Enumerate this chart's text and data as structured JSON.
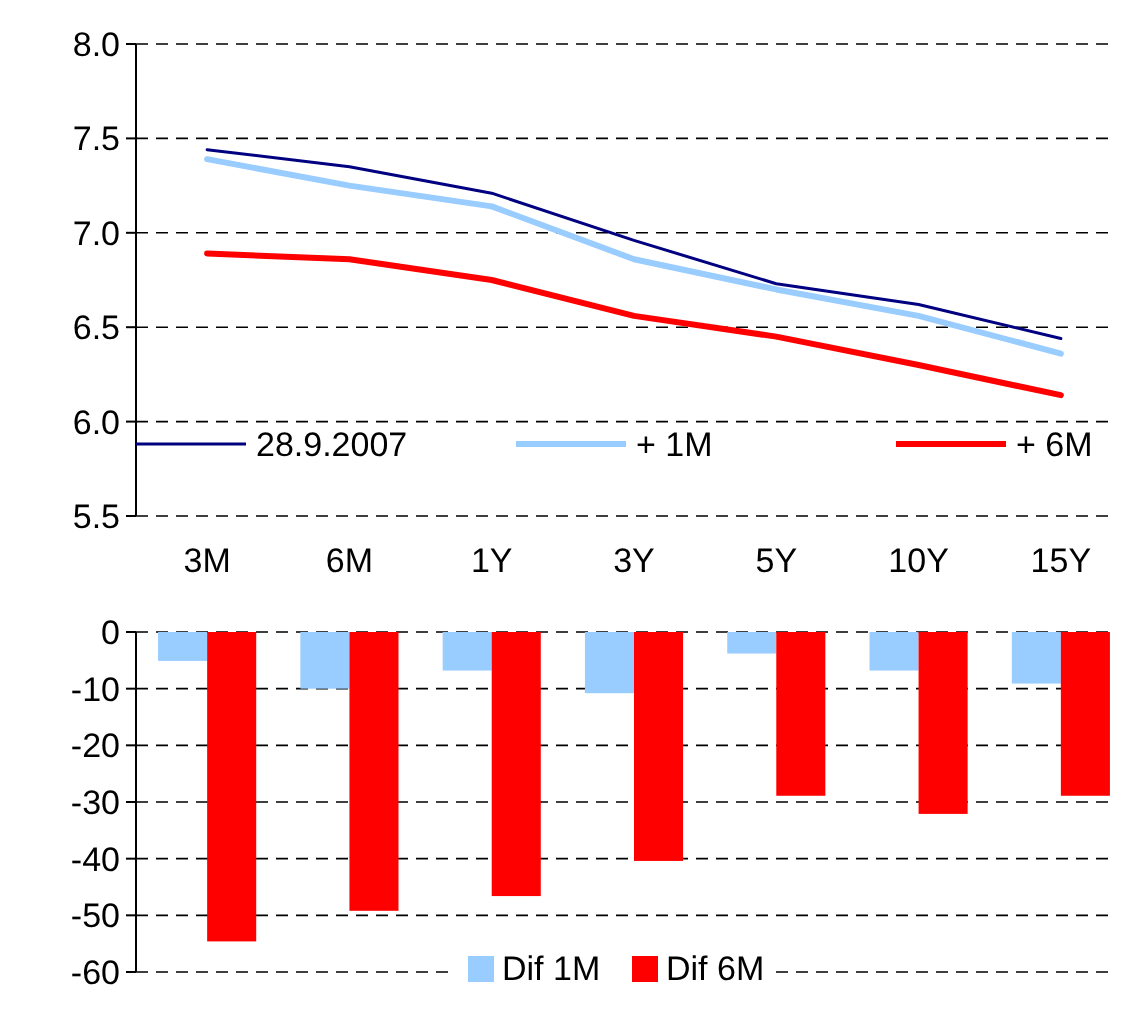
{
  "chart_data": [
    {
      "type": "line",
      "categories": [
        "3M",
        "6M",
        "1Y",
        "3Y",
        "5Y",
        "10Y",
        "15Y"
      ],
      "series": [
        {
          "name": "28.9.2007",
          "color": "#000080",
          "values": [
            7.44,
            7.35,
            7.21,
            6.96,
            6.73,
            6.62,
            6.44
          ]
        },
        {
          "name": "+ 1M",
          "color": "#99ccff",
          "values": [
            7.39,
            7.25,
            7.14,
            6.86,
            6.7,
            6.56,
            6.36
          ]
        },
        {
          "name": "+ 6M",
          "color": "#ff0000",
          "values": [
            6.89,
            6.86,
            6.75,
            6.56,
            6.45,
            6.3,
            6.14
          ]
        }
      ],
      "ylim": [
        5.5,
        8
      ],
      "yticks": [
        {
          "value": 5.5,
          "label": "5.5"
        },
        {
          "value": 6,
          "label": "6.0"
        },
        {
          "value": 6.5,
          "label": "6.5"
        },
        {
          "value": 7,
          "label": "7.0"
        },
        {
          "value": 7.5,
          "label": "7.5"
        },
        {
          "value": 8,
          "label": "8.0"
        }
      ],
      "grid": "y",
      "legend": "bottom"
    },
    {
      "type": "bar",
      "categories": [
        null,
        null,
        null,
        null,
        null,
        null,
        null
      ],
      "series": [
        {
          "name": "Dif 1M",
          "color": "#99ccff",
          "values": [
            -5.1,
            -10,
            -6.8,
            -10.8,
            -3.8,
            -6.8,
            -9.1
          ]
        },
        {
          "name": "Dif 6M",
          "color": "#ff0000",
          "values": [
            -54.6,
            -49.2,
            -46.6,
            -40.4,
            -28.9,
            -32.1,
            -28.9
          ]
        }
      ],
      "ylim": [
        -60,
        0
      ],
      "yticks": [
        -60,
        -50,
        -40,
        -30,
        -20,
        -10,
        0
      ],
      "grid": "y",
      "legend": "bottom"
    }
  ]
}
